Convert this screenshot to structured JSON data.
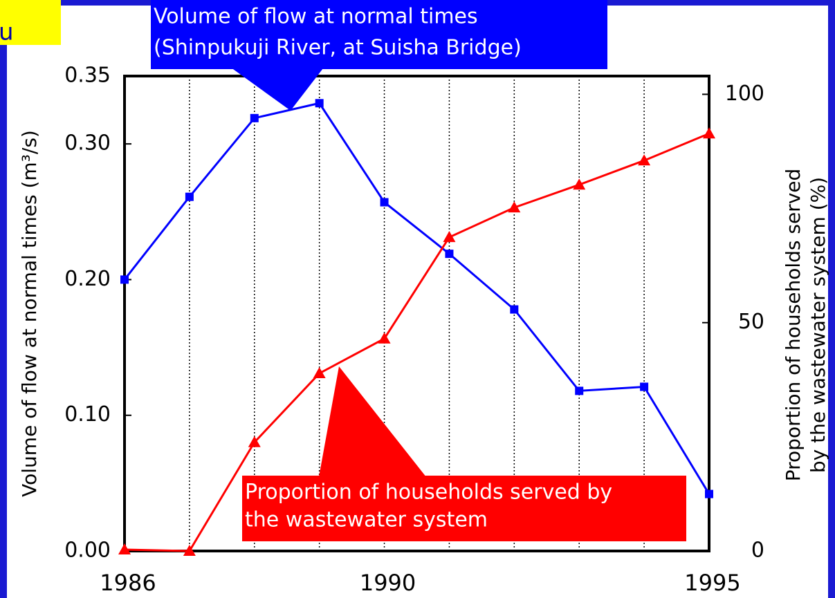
{
  "chart_data": {
    "type": "line",
    "corner_text": "u",
    "y_label": "Volume of flow at normal times (m³/s)",
    "y2_label": [
      "Proportion of households served",
      "by the wastewater system (%)"
    ],
    "annotations": [
      {
        "lines": [
          "Volume of flow at normal times",
          "(Shinpukuji River, at Suisha Bridge)"
        ],
        "color": "#0000ff"
      },
      {
        "lines": [
          "Proportion of households served by",
          "the wastewater system"
        ],
        "color": "#ff0000"
      }
    ],
    "x": [
      1986,
      1987,
      1988,
      1989,
      1990,
      1991,
      1992,
      1993,
      1994,
      1995
    ],
    "xlim": [
      1986,
      1995
    ],
    "xticks": [
      1986,
      1990,
      1995
    ],
    "ylim": [
      0,
      0.35
    ],
    "yticks": [
      {
        "value": 0,
        "label": "0.00"
      },
      {
        "value": 0.1,
        "label": "0.10"
      },
      {
        "value": 0.2,
        "label": "0.20"
      },
      {
        "value": 0.3,
        "label": "0.30"
      },
      {
        "value": 0.35,
        "label": "0.35"
      }
    ],
    "y2lim": [
      0,
      104
    ],
    "y2ticks": [
      0,
      50,
      100
    ],
    "series": [
      {
        "color": "#0000ff",
        "marker": "square",
        "values": [
          0.2,
          0.261,
          0.319,
          0.33,
          0.257,
          0.219,
          0.178,
          0.118,
          0.121,
          0.042
        ]
      },
      {
        "color": "#ff0000",
        "marker": "triangle",
        "axis": "y2",
        "values": [
          0.3,
          0,
          23.8,
          38.9,
          46.5,
          68.7,
          75.2,
          80.2,
          85.5,
          91.4
        ]
      }
    ]
  }
}
